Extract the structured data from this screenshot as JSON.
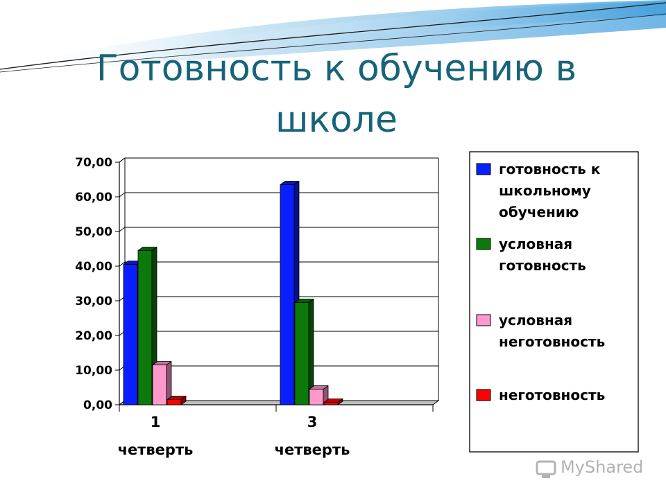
{
  "slide": {
    "title": "Готовность к обучению в школе"
  },
  "watermark": {
    "text": "MyShared"
  },
  "chart_data": {
    "type": "bar",
    "categories": [
      {
        "number": "1",
        "unit": "четверть"
      },
      {
        "number": "3",
        "unit": "четверть"
      }
    ],
    "series": [
      {
        "name": "готовность к школьному обучению",
        "name_lines": [
          "готовность к",
          "школьному",
          "обучению"
        ],
        "color": "#0a1fff",
        "values": [
          40.5,
          63.5
        ]
      },
      {
        "name": "условная готовность",
        "name_lines": [
          "условная",
          "готовность"
        ],
        "color": "#0b7a0b",
        "values": [
          44.5,
          29.5
        ]
      },
      {
        "name": "условная неготовность",
        "name_lines": [
          "условная",
          "неготовность"
        ],
        "color": "#ff99cc",
        "values": [
          11.5,
          4.5
        ]
      },
      {
        "name": "неготовность",
        "name_lines": [
          "неготовность"
        ],
        "color": "#ff0000",
        "values": [
          1.5,
          0.7
        ]
      }
    ],
    "y_ticks": [
      "0,00",
      "10,00",
      "20,00",
      "30,00",
      "40,00",
      "50,00",
      "60,00",
      "70,00"
    ],
    "ylim": [
      0,
      70
    ],
    "grid": true,
    "legend_position": "right",
    "style": "3d-clustered-column"
  }
}
